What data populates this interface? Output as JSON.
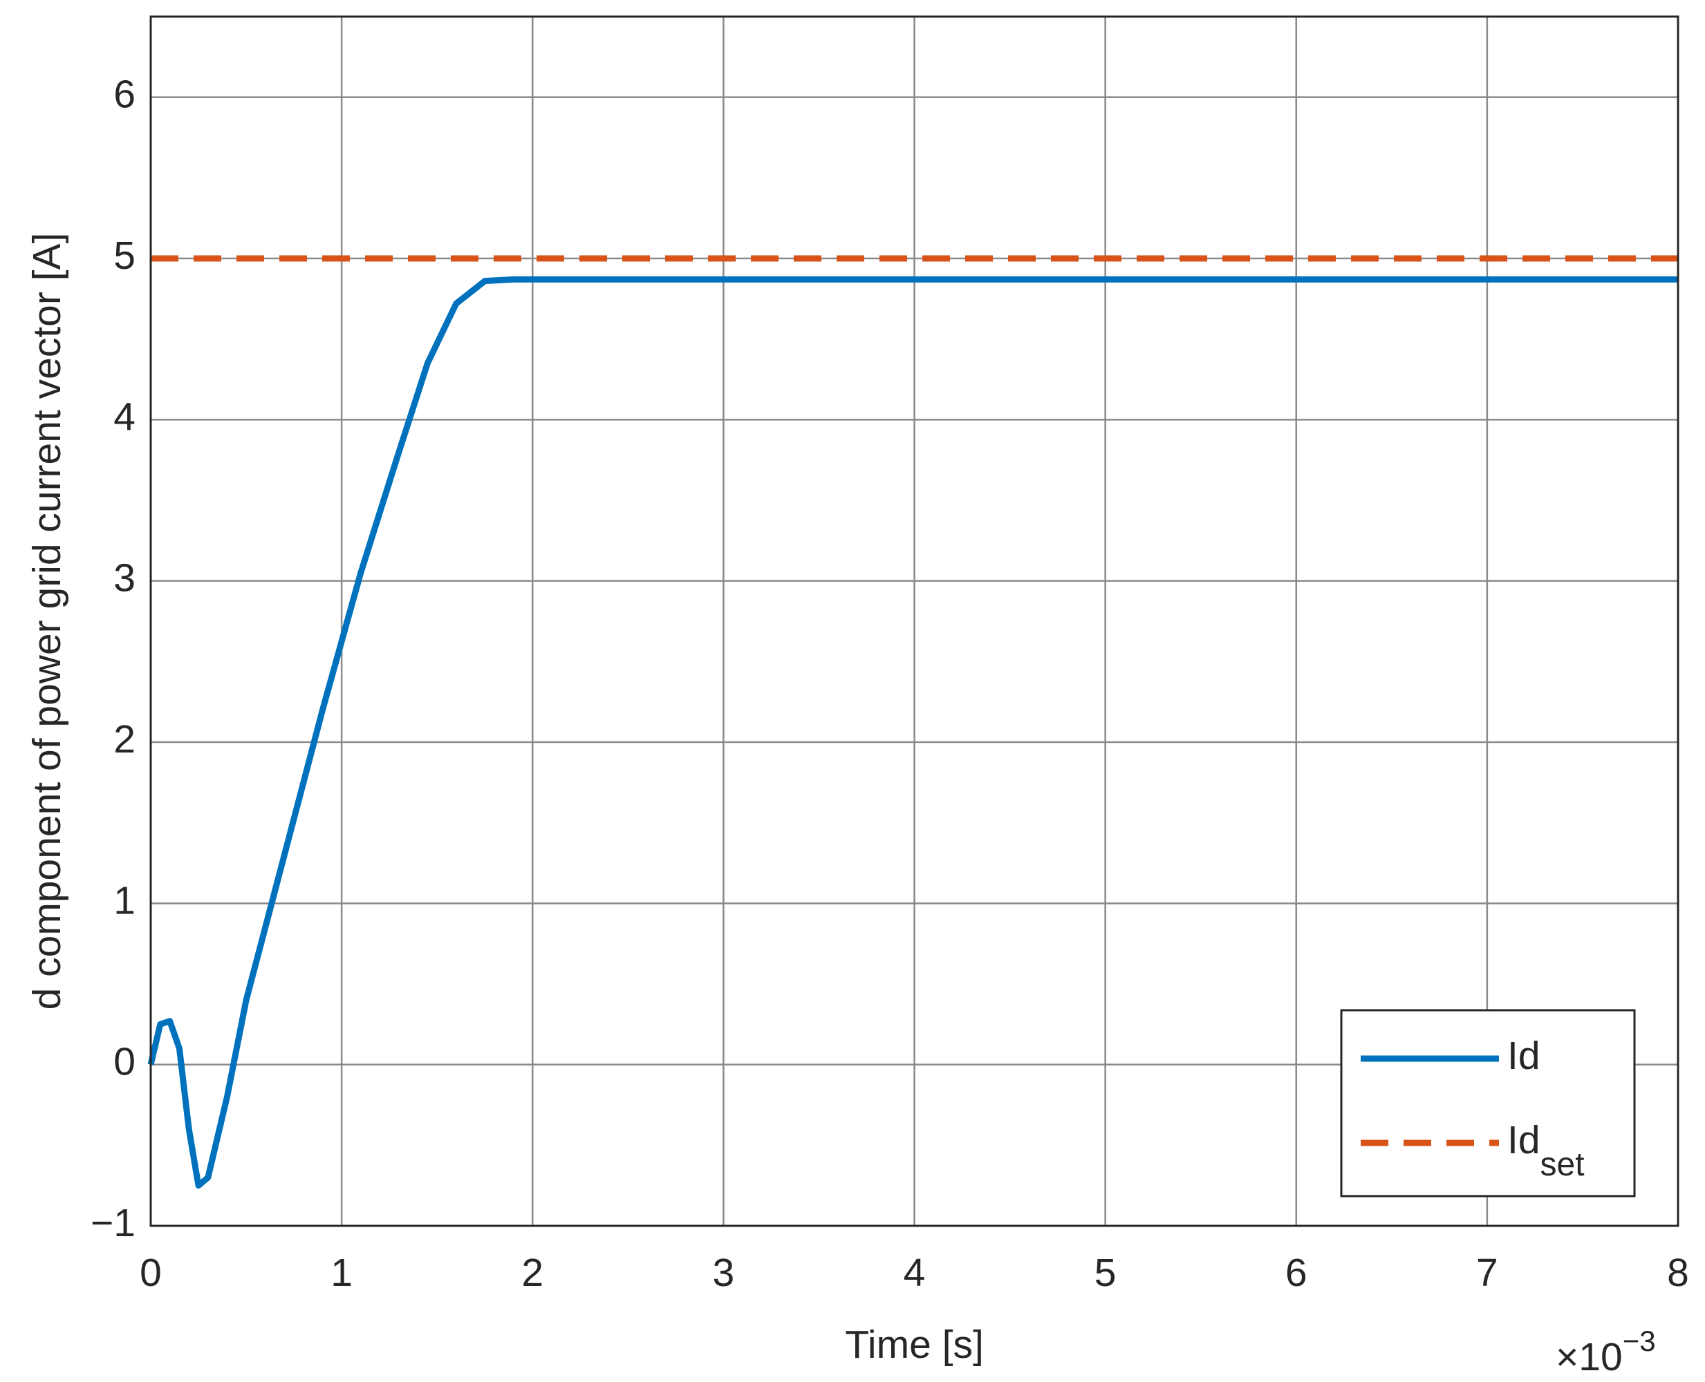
{
  "chart_data": {
    "type": "line",
    "xlabel": "Time [s]",
    "ylabel": "d component of power grid current vector [A]",
    "x_multiplier": {
      "base": "×10",
      "exponent": "−3"
    },
    "xlim": [
      0,
      8
    ],
    "xticks": [
      0,
      1,
      2,
      3,
      4,
      5,
      6,
      7,
      8
    ],
    "ylim": [
      -1,
      6.5
    ],
    "yticks": [
      {
        "value": -1,
        "label": "−1"
      },
      0,
      1,
      2,
      3,
      4,
      5,
      6
    ],
    "grid": true,
    "legend": "southeast",
    "series": [
      {
        "name": "Id",
        "color": "#0072BD",
        "dash": "solid",
        "x": [
          0,
          0.05,
          0.1,
          0.15,
          0.2,
          0.25,
          0.3,
          0.4,
          0.5,
          0.7,
          0.9,
          1.1,
          1.3,
          1.45,
          1.6,
          1.75,
          1.9,
          2,
          8
        ],
        "values": [
          0,
          0.25,
          0.27,
          0.1,
          -0.4,
          -0.75,
          -0.7,
          -0.2,
          0.4,
          1.3,
          2.2,
          3.05,
          3.8,
          4.35,
          4.72,
          4.86,
          4.87,
          4.87,
          4.87
        ]
      },
      {
        "name": "Id",
        "subscript": "set",
        "color": "#D95319",
        "dash": "dashed",
        "x": [
          0,
          8
        ],
        "values": [
          5,
          5
        ]
      }
    ]
  }
}
